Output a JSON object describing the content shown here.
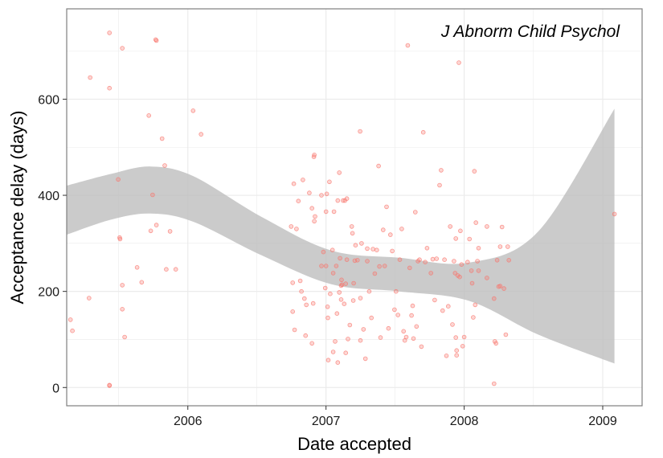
{
  "chart_data": {
    "type": "scatter",
    "title": "",
    "annotation": "J Abnorm Child Psychol",
    "xlabel": "Date accepted",
    "ylabel": "Acceptance delay (days)",
    "xlim": [
      "2005-02-15",
      "2009-04-15"
    ],
    "ylim": [
      -38,
      788
    ],
    "x_ticks": [
      {
        "date": "2006-01-01",
        "label": "2006"
      },
      {
        "date": "2007-01-01",
        "label": "2007"
      },
      {
        "date": "2008-01-01",
        "label": "2008"
      },
      {
        "date": "2009-01-01",
        "label": "2009"
      }
    ],
    "x_minor_ticks": [
      "2005-07-02",
      "2006-07-02",
      "2007-07-02",
      "2008-07-02"
    ],
    "y_ticks": [
      0,
      200,
      400,
      600
    ],
    "y_minor_ticks": [
      100,
      300,
      500,
      700
    ],
    "grid": true,
    "colors": {
      "points": "#f8766d",
      "band": "#bdbdbd",
      "panel_border": "#7f7f7f",
      "grid": "#ebebeb"
    },
    "smooth_band": {
      "x": [
        "2005-02-15",
        "2005-06-15",
        "2005-09-25",
        "2006-01-15",
        "2006-07-15",
        "2007-01-15",
        "2007-07-15",
        "2008-01-15",
        "2008-07-15",
        "2009-02-01"
      ],
      "upper": [
        420,
        445,
        460,
        440,
        355,
        285,
        270,
        260,
        325,
        580
      ],
      "lower": [
        318,
        350,
        362,
        345,
        275,
        215,
        200,
        180,
        110,
        50
      ]
    },
    "points": [
      {
        "x": "2005-02-25",
        "y": 141
      },
      {
        "x": "2005-03-02",
        "y": 118
      },
      {
        "x": "2005-04-15",
        "y": 186
      },
      {
        "x": "2005-04-18",
        "y": 645
      },
      {
        "x": "2005-06-08",
        "y": 738
      },
      {
        "x": "2005-06-08",
        "y": 623
      },
      {
        "x": "2005-06-08",
        "y": 5
      },
      {
        "x": "2005-06-08",
        "y": 4
      },
      {
        "x": "2005-07-01",
        "y": 433
      },
      {
        "x": "2005-07-05",
        "y": 312
      },
      {
        "x": "2005-07-06",
        "y": 309
      },
      {
        "x": "2005-07-12",
        "y": 706
      },
      {
        "x": "2005-07-12",
        "y": 213
      },
      {
        "x": "2005-07-12",
        "y": 163
      },
      {
        "x": "2005-07-18",
        "y": 105
      },
      {
        "x": "2005-08-20",
        "y": 250
      },
      {
        "x": "2005-09-01",
        "y": 219
      },
      {
        "x": "2005-09-20",
        "y": 566
      },
      {
        "x": "2005-09-25",
        "y": 326
      },
      {
        "x": "2005-09-30",
        "y": 401
      },
      {
        "x": "2005-10-08",
        "y": 724
      },
      {
        "x": "2005-10-10",
        "y": 722
      },
      {
        "x": "2005-10-10",
        "y": 338
      },
      {
        "x": "2005-10-25",
        "y": 518
      },
      {
        "x": "2005-11-01",
        "y": 462
      },
      {
        "x": "2005-11-05",
        "y": 246
      },
      {
        "x": "2005-11-15",
        "y": 325
      },
      {
        "x": "2005-11-30",
        "y": 246
      },
      {
        "x": "2006-01-15",
        "y": 576
      },
      {
        "x": "2006-02-05",
        "y": 527
      },
      {
        "x": "2006-10-01",
        "y": 335
      },
      {
        "x": "2006-10-05",
        "y": 218
      },
      {
        "x": "2006-10-05",
        "y": 158
      },
      {
        "x": "2006-10-08",
        "y": 424
      },
      {
        "x": "2006-10-10",
        "y": 120
      },
      {
        "x": "2006-10-15",
        "y": 330
      },
      {
        "x": "2006-10-20",
        "y": 388
      },
      {
        "x": "2006-10-25",
        "y": 222
      },
      {
        "x": "2006-10-28",
        "y": 200
      },
      {
        "x": "2006-11-01",
        "y": 432
      },
      {
        "x": "2006-11-05",
        "y": 185
      },
      {
        "x": "2006-11-08",
        "y": 108
      },
      {
        "x": "2006-11-10",
        "y": 172
      },
      {
        "x": "2006-11-18",
        "y": 405
      },
      {
        "x": "2006-11-25",
        "y": 373
      },
      {
        "x": "2006-11-25",
        "y": 92
      },
      {
        "x": "2006-11-28",
        "y": 175
      },
      {
        "x": "2006-11-30",
        "y": 480
      },
      {
        "x": "2006-12-01",
        "y": 484
      },
      {
        "x": "2006-12-01",
        "y": 346
      },
      {
        "x": "2006-12-03",
        "y": 356
      },
      {
        "x": "2006-12-20",
        "y": 253
      },
      {
        "x": "2006-12-20",
        "y": 400
      },
      {
        "x": "2006-12-25",
        "y": 282
      },
      {
        "x": "2006-12-30",
        "y": 207
      },
      {
        "x": "2007-01-01",
        "y": 366
      },
      {
        "x": "2007-01-01",
        "y": 253
      },
      {
        "x": "2007-01-03",
        "y": 403
      },
      {
        "x": "2007-01-05",
        "y": 168
      },
      {
        "x": "2007-01-06",
        "y": 145
      },
      {
        "x": "2007-01-07",
        "y": 57
      },
      {
        "x": "2007-01-10",
        "y": 428
      },
      {
        "x": "2007-01-12",
        "y": 195
      },
      {
        "x": "2007-01-18",
        "y": 286
      },
      {
        "x": "2007-01-20",
        "y": 238
      },
      {
        "x": "2007-01-20",
        "y": 74
      },
      {
        "x": "2007-01-22",
        "y": 366
      },
      {
        "x": "2007-01-25",
        "y": 96
      },
      {
        "x": "2007-01-28",
        "y": 253
      },
      {
        "x": "2007-01-30",
        "y": 154
      },
      {
        "x": "2007-02-01",
        "y": 52
      },
      {
        "x": "2007-02-01",
        "y": 389
      },
      {
        "x": "2007-02-05",
        "y": 198
      },
      {
        "x": "2007-02-05",
        "y": 447
      },
      {
        "x": "2007-02-07",
        "y": 269
      },
      {
        "x": "2007-02-10",
        "y": 212
      },
      {
        "x": "2007-02-10",
        "y": 183
      },
      {
        "x": "2007-02-11",
        "y": 224
      },
      {
        "x": "2007-02-12",
        "y": 214
      },
      {
        "x": "2007-02-15",
        "y": 389
      },
      {
        "x": "2007-02-18",
        "y": 174
      },
      {
        "x": "2007-02-20",
        "y": 389
      },
      {
        "x": "2007-02-22",
        "y": 216
      },
      {
        "x": "2007-02-22",
        "y": 72
      },
      {
        "x": "2007-02-25",
        "y": 393
      },
      {
        "x": "2007-02-25",
        "y": 266
      },
      {
        "x": "2007-02-28",
        "y": 101
      },
      {
        "x": "2007-03-05",
        "y": 130
      },
      {
        "x": "2007-03-10",
        "y": 335
      },
      {
        "x": "2007-03-12",
        "y": 321
      },
      {
        "x": "2007-03-14",
        "y": 181
      },
      {
        "x": "2007-03-15",
        "y": 217
      },
      {
        "x": "2007-03-18",
        "y": 264
      },
      {
        "x": "2007-03-20",
        "y": 296
      },
      {
        "x": "2007-03-25",
        "y": 265
      },
      {
        "x": "2007-04-01",
        "y": 533
      },
      {
        "x": "2007-04-02",
        "y": 186
      },
      {
        "x": "2007-04-02",
        "y": 98
      },
      {
        "x": "2007-04-05",
        "y": 300
      },
      {
        "x": "2007-04-10",
        "y": 121
      },
      {
        "x": "2007-04-15",
        "y": 60
      },
      {
        "x": "2007-04-20",
        "y": 289
      },
      {
        "x": "2007-04-20",
        "y": 263
      },
      {
        "x": "2007-04-25",
        "y": 200
      },
      {
        "x": "2007-05-01",
        "y": 145
      },
      {
        "x": "2007-05-05",
        "y": 288
      },
      {
        "x": "2007-05-10",
        "y": 237
      },
      {
        "x": "2007-05-15",
        "y": 286
      },
      {
        "x": "2007-05-20",
        "y": 461
      },
      {
        "x": "2007-05-22",
        "y": 252
      },
      {
        "x": "2007-05-25",
        "y": 104
      },
      {
        "x": "2007-06-01",
        "y": 328
      },
      {
        "x": "2007-06-05",
        "y": 253
      },
      {
        "x": "2007-06-10",
        "y": 376
      },
      {
        "x": "2007-06-15",
        "y": 123
      },
      {
        "x": "2007-06-20",
        "y": 318
      },
      {
        "x": "2007-06-25",
        "y": 284
      },
      {
        "x": "2007-07-01",
        "y": 162
      },
      {
        "x": "2007-07-05",
        "y": 200
      },
      {
        "x": "2007-07-10",
        "y": 151
      },
      {
        "x": "2007-07-15",
        "y": 266
      },
      {
        "x": "2007-07-20",
        "y": 330
      },
      {
        "x": "2007-07-25",
        "y": 117
      },
      {
        "x": "2007-07-28",
        "y": 98
      },
      {
        "x": "2007-08-01",
        "y": 105
      },
      {
        "x": "2007-08-05",
        "y": 712
      },
      {
        "x": "2007-08-10",
        "y": 249
      },
      {
        "x": "2007-08-15",
        "y": 150
      },
      {
        "x": "2007-08-18",
        "y": 170
      },
      {
        "x": "2007-08-20",
        "y": 102
      },
      {
        "x": "2007-08-25",
        "y": 365
      },
      {
        "x": "2007-08-28",
        "y": 127
      },
      {
        "x": "2007-09-01",
        "y": 263
      },
      {
        "x": "2007-09-05",
        "y": 266
      },
      {
        "x": "2007-09-10",
        "y": 85
      },
      {
        "x": "2007-09-15",
        "y": 531
      },
      {
        "x": "2007-09-20",
        "y": 261
      },
      {
        "x": "2007-09-25",
        "y": 290
      },
      {
        "x": "2007-10-05",
        "y": 238
      },
      {
        "x": "2007-10-10",
        "y": 267
      },
      {
        "x": "2007-10-15",
        "y": 182
      },
      {
        "x": "2007-10-20",
        "y": 268
      },
      {
        "x": "2007-10-28",
        "y": 421
      },
      {
        "x": "2007-11-01",
        "y": 452
      },
      {
        "x": "2007-11-05",
        "y": 160
      },
      {
        "x": "2007-11-10",
        "y": 266
      },
      {
        "x": "2007-11-15",
        "y": 66
      },
      {
        "x": "2007-11-20",
        "y": 169
      },
      {
        "x": "2007-11-25",
        "y": 335
      },
      {
        "x": "2007-12-01",
        "y": 131
      },
      {
        "x": "2007-12-05",
        "y": 263
      },
      {
        "x": "2007-12-08",
        "y": 238
      },
      {
        "x": "2007-12-10",
        "y": 310
      },
      {
        "x": "2007-12-10",
        "y": 104
      },
      {
        "x": "2007-12-12",
        "y": 77
      },
      {
        "x": "2007-12-12",
        "y": 67
      },
      {
        "x": "2007-12-15",
        "y": 233
      },
      {
        "x": "2007-12-18",
        "y": 676
      },
      {
        "x": "2007-12-20",
        "y": 230
      },
      {
        "x": "2007-12-22",
        "y": 326
      },
      {
        "x": "2007-12-25",
        "y": 256
      },
      {
        "x": "2007-12-28",
        "y": 86
      },
      {
        "x": "2008-01-01",
        "y": 105
      },
      {
        "x": "2008-01-10",
        "y": 261
      },
      {
        "x": "2008-01-15",
        "y": 309
      },
      {
        "x": "2008-01-20",
        "y": 243
      },
      {
        "x": "2008-01-22",
        "y": 217
      },
      {
        "x": "2008-01-25",
        "y": 146
      },
      {
        "x": "2008-01-28",
        "y": 450
      },
      {
        "x": "2008-01-30",
        "y": 172
      },
      {
        "x": "2008-02-01",
        "y": 343
      },
      {
        "x": "2008-02-05",
        "y": 263
      },
      {
        "x": "2008-02-08",
        "y": 290
      },
      {
        "x": "2008-02-08",
        "y": 243
      },
      {
        "x": "2008-03-01",
        "y": 228
      },
      {
        "x": "2008-03-01",
        "y": 335
      },
      {
        "x": "2008-03-20",
        "y": 8
      },
      {
        "x": "2008-03-20",
        "y": 185
      },
      {
        "x": "2008-03-22",
        "y": 96
      },
      {
        "x": "2008-03-25",
        "y": 92
      },
      {
        "x": "2008-03-28",
        "y": 265
      },
      {
        "x": "2008-04-01",
        "y": 210
      },
      {
        "x": "2008-04-05",
        "y": 293
      },
      {
        "x": "2008-04-05",
        "y": 211
      },
      {
        "x": "2008-04-10",
        "y": 334
      },
      {
        "x": "2008-04-15",
        "y": 206
      },
      {
        "x": "2008-04-20",
        "y": 110
      },
      {
        "x": "2008-04-25",
        "y": 293
      },
      {
        "x": "2008-04-28",
        "y": 265
      },
      {
        "x": "2009-02-01",
        "y": 361
      }
    ]
  }
}
